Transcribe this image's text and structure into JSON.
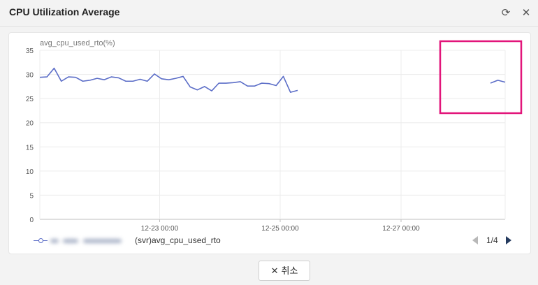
{
  "dialog": {
    "title": "CPU Utilization Average",
    "refresh_icon": "refresh-icon",
    "close_icon": "close-icon"
  },
  "chart_data": {
    "type": "line",
    "ylabel": "avg_cpu_used_rto(%)",
    "ylim": [
      0,
      35
    ],
    "yticks": [
      "0",
      "5",
      "10",
      "15",
      "20",
      "25",
      "30",
      "35"
    ],
    "xticks": [
      "12-23 00:00",
      "12-25 00:00",
      "12-27 00:00"
    ],
    "grid": true,
    "series": [
      {
        "name": "(svr)avg_cpu_used_rto",
        "color": "#5b6dc7",
        "segments": [
          [
            29.4,
            29.5,
            31.3,
            28.6,
            29.5,
            29.4,
            28.6,
            28.8,
            29.2,
            28.9,
            29.5,
            29.3,
            28.6,
            28.6,
            29.0,
            28.6,
            30.1,
            29.1,
            28.9,
            29.2,
            29.6,
            27.4,
            26.8,
            27.5,
            26.6,
            28.2,
            28.2,
            28.3,
            28.5,
            27.6,
            27.6,
            28.2,
            28.1,
            27.7,
            29.6,
            26.3,
            26.7
          ],
          [
            28.2,
            28.8,
            28.4
          ]
        ]
      }
    ],
    "highlight": "pink-box-around-last-segment"
  },
  "legend": {
    "series_label": "(svr)avg_cpu_used_rto"
  },
  "pager": {
    "label": "1/4"
  },
  "footer": {
    "cancel_label": "취소"
  }
}
